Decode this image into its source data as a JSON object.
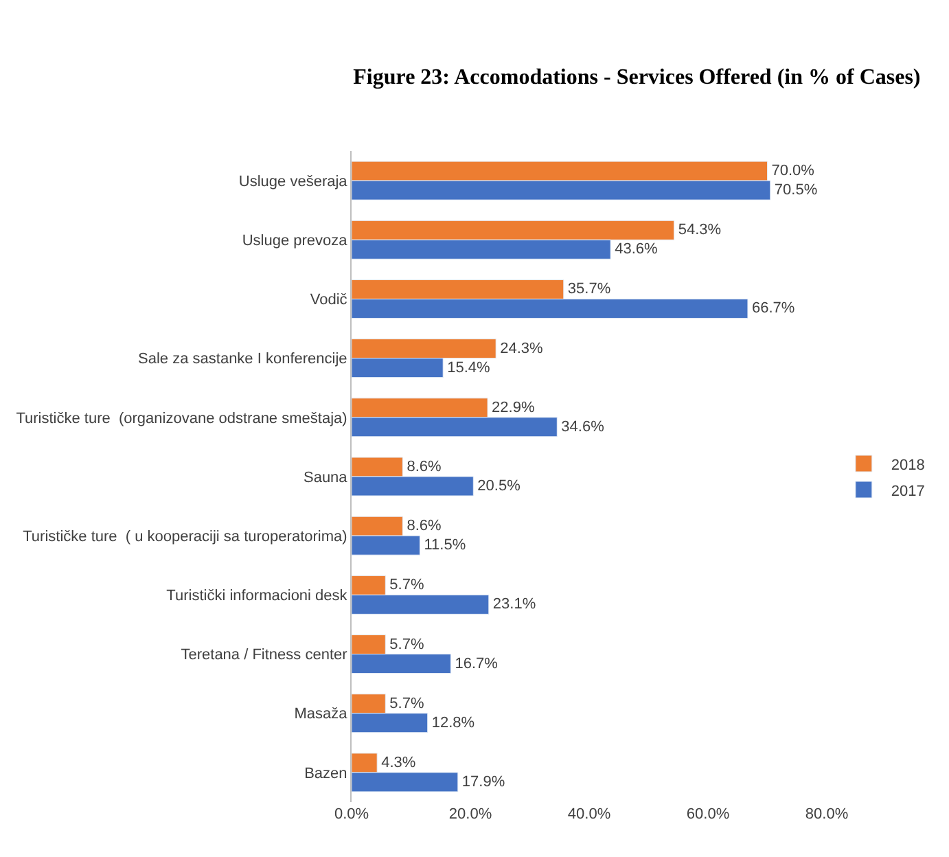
{
  "chart_data": {
    "type": "bar",
    "orientation": "horizontal",
    "title": "Figure 23: Accomodations - Services Offered (in % of Cases)",
    "categories": [
      "Usluge vešeraja",
      "Usluge prevoza",
      "Vodič",
      "Sale za sastanke I konferencije",
      "Turističke ture  (organizovane odstrane smeštaja)",
      "Sauna",
      "Turističke ture  ( u kooperaciji sa turoperatorima)",
      "Turistički informacioni desk",
      "Teretana / Fitness center",
      "Masaža",
      "Bazen"
    ],
    "series": [
      {
        "name": "2018",
        "color": "#ed7d31",
        "values": [
          70.0,
          54.3,
          35.7,
          24.3,
          22.9,
          8.6,
          8.6,
          5.7,
          5.7,
          5.7,
          4.3
        ],
        "value_labels": [
          "70.0%",
          "54.3%",
          "35.7%",
          "24.3%",
          "22.9%",
          "8.6%",
          "8.6%",
          "5.7%",
          "5.7%",
          "5.7%",
          "4.3%"
        ]
      },
      {
        "name": "2017",
        "color": "#4472c4",
        "values": [
          70.5,
          43.6,
          66.7,
          15.4,
          34.6,
          20.5,
          11.5,
          23.1,
          16.7,
          12.8,
          17.9
        ],
        "value_labels": [
          "70.5%",
          "43.6%",
          "66.7%",
          "15.4%",
          "34.6%",
          "20.5%",
          "11.5%",
          "23.1%",
          "16.7%",
          "12.8%",
          "17.9%"
        ]
      }
    ],
    "xlim": [
      0,
      80
    ],
    "xticks": [
      {
        "value": 0,
        "label": "0.0%"
      },
      {
        "value": 20,
        "label": "20.0%"
      },
      {
        "value": 40,
        "label": "40.0%"
      },
      {
        "value": 60,
        "label": "60.0%"
      },
      {
        "value": 80,
        "label": "80.0%"
      }
    ],
    "legend": "right"
  }
}
